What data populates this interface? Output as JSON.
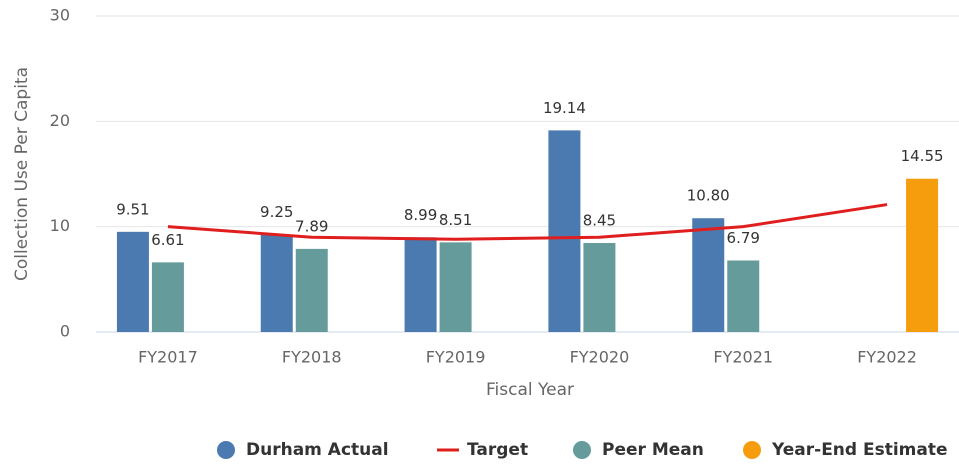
{
  "chart_data": {
    "type": "bar",
    "x_label": "Fiscal Year",
    "y_label": "Collection Use Per Capita",
    "categories": [
      "FY2017",
      "FY2018",
      "FY2019",
      "FY2020",
      "FY2021",
      "FY2022"
    ],
    "series": [
      {
        "name": "Durham Actual",
        "color": "#4a7aaf",
        "values": [
          9.51,
          9.25,
          8.99,
          19.14,
          10.8,
          null
        ],
        "value_labels": [
          "9.51",
          "9.25",
          "8.99",
          "19.14",
          "10.80",
          null
        ]
      },
      {
        "name": "Target",
        "type": "line",
        "color": "#e01e1e",
        "values": [
          10.0,
          9.0,
          8.8,
          9.0,
          10.0,
          12.1
        ]
      },
      {
        "name": "Peer Mean",
        "color": "#659b9a",
        "values": [
          6.61,
          7.89,
          8.51,
          8.45,
          6.79,
          null
        ]
      },
      {
        "name": "Year-End Estimate",
        "color": "#f59d0c",
        "values": [
          null,
          null,
          null,
          null,
          null,
          14.55
        ]
      }
    ],
    "ylim": [
      0,
      30
    ],
    "yticks": [
      0,
      10,
      20,
      30
    ],
    "grid": true,
    "legend": "bottom"
  }
}
